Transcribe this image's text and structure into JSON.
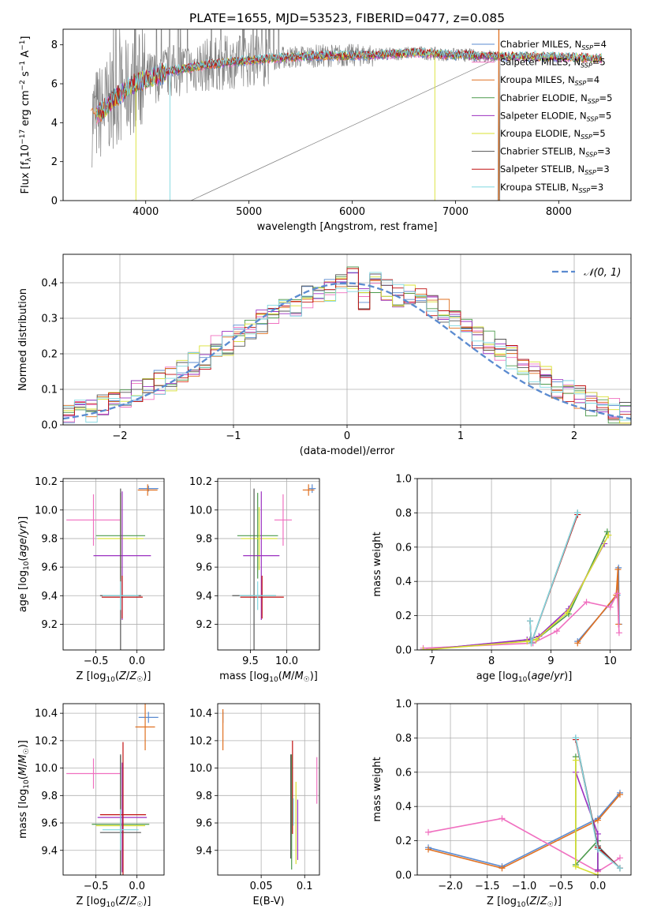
{
  "chart_data": [
    {
      "type": "line",
      "title": "PLATE=1655, MJD=53523, FIBERID=0477, z=0.085",
      "xlabel": "wavelength [Angstrom, rest frame]",
      "ylabel": "Flux [f_λ 10^-17 erg cm^-2 s^-1 A^-1]",
      "xlim": [
        3200,
        8700
      ],
      "ylim": [
        0,
        8.8
      ],
      "xticks": [
        4000,
        5000,
        6000,
        7000,
        8000
      ],
      "yticks": [
        0,
        2,
        4,
        6,
        8
      ],
      "legend_position": "right",
      "series": [
        {
          "name": "Chabrier MILES, N_SSP=4",
          "color": "#5b8bd0"
        },
        {
          "name": "Salpeter MILES, N_SSP=5",
          "color": "#f070c0"
        },
        {
          "name": "Kroupa MILES, N_SSP=4",
          "color": "#e07020"
        },
        {
          "name": "Chabrier ELODIE, N_SSP=5",
          "color": "#4c9a4c"
        },
        {
          "name": "Salpeter ELODIE, N_SSP=5",
          "color": "#9b30c0"
        },
        {
          "name": "Kroupa ELODIE, N_SSP=5",
          "color": "#d8e030"
        },
        {
          "name": "Chabrier STELIB, N_SSP=3",
          "color": "#555555"
        },
        {
          "name": "Salpeter STELIB, N_SSP=3",
          "color": "#c01010"
        },
        {
          "name": "Kroupa STELIB, N_SSP=3",
          "color": "#80d8e0"
        }
      ],
      "continuum": {
        "x": [
          3500,
          3600,
          3700,
          3900,
          4000,
          4200,
          4500,
          4800,
          5000,
          5200,
          5500,
          5800,
          6000,
          6300,
          6600,
          6900,
          7200,
          7500,
          7800,
          8100,
          8400
        ],
        "y": [
          4.3,
          4.7,
          5.3,
          6.0,
          6.2,
          6.6,
          6.9,
          7.1,
          7.2,
          7.3,
          7.4,
          7.45,
          7.45,
          7.5,
          7.6,
          7.5,
          7.45,
          7.4,
          7.4,
          7.35,
          7.3
        ]
      },
      "data_color": "#808080"
    },
    {
      "type": "histogram",
      "xlabel": "(data-model)/error",
      "ylabel": "Normed distribution",
      "xlim": [
        -2.5,
        2.5
      ],
      "ylim": [
        0,
        0.48
      ],
      "xticks": [
        -2,
        -1,
        0,
        1,
        2
      ],
      "yticks": [
        0.0,
        0.1,
        0.2,
        0.3,
        0.4
      ],
      "grid": true,
      "legend": "𝒩(0, 1)",
      "legend_position": "top-right",
      "gaussian_color": "#5b8bd0",
      "bin_edges_start": -2.5,
      "bin_width": 0.1,
      "base_values": [
        0.03,
        0.05,
        0.04,
        0.05,
        0.06,
        0.07,
        0.09,
        0.1,
        0.12,
        0.13,
        0.15,
        0.17,
        0.19,
        0.22,
        0.23,
        0.25,
        0.27,
        0.29,
        0.31,
        0.32,
        0.34,
        0.36,
        0.37,
        0.38,
        0.39,
        0.41,
        0.35,
        0.4,
        0.38,
        0.36,
        0.37,
        0.35,
        0.33,
        0.32,
        0.3,
        0.27,
        0.25,
        0.23,
        0.21,
        0.19,
        0.17,
        0.15,
        0.13,
        0.11,
        0.09,
        0.08,
        0.06,
        0.05,
        0.04,
        0.03
      ]
    },
    {
      "type": "scatter",
      "xlabel": "Z [log10(Z/Z☉)]",
      "ylabel": "age  [log10(age/yr)]",
      "xlim": [
        -0.9,
        0.33
      ],
      "ylim": [
        9.02,
        10.22
      ],
      "xticks": [
        -0.5,
        0.0
      ],
      "yticks": [
        9.2,
        9.4,
        9.6,
        9.8,
        10.0,
        10.2
      ],
      "grid": true,
      "points": [
        {
          "series": "Chabrier MILES",
          "x": 0.14,
          "y": 10.15,
          "xerr": 0.12,
          "yerr": 0.02
        },
        {
          "series": "Kroupa MILES",
          "x": 0.13,
          "y": 10.14,
          "xerr": 0.12,
          "yerr": 0.04
        },
        {
          "series": "Salpeter MILES",
          "x": -0.53,
          "y": 9.93,
          "xerr": 0.33,
          "yerr": 0.18
        },
        {
          "series": "Chabrier ELODIE",
          "x": -0.2,
          "y": 9.82,
          "xerr": 0.3,
          "yerr": 0.3
        },
        {
          "series": "Kroupa ELODIE",
          "x": -0.2,
          "y": 9.8,
          "xerr": 0.28,
          "yerr": 0.3
        },
        {
          "series": "Salpeter ELODIE",
          "x": -0.18,
          "y": 9.68,
          "xerr": 0.35,
          "yerr": 0.45
        },
        {
          "series": "Chabrier STELIB",
          "x": -0.2,
          "y": 9.4,
          "xerr": 0.25,
          "yerr": 0.75
        },
        {
          "series": "Salpeter STELIB",
          "x": -0.18,
          "y": 9.39,
          "xerr": 0.25,
          "yerr": 0.15
        },
        {
          "series": "Kroupa STELIB",
          "x": -0.2,
          "y": 9.4,
          "xerr": 0.22,
          "yerr": 0.1
        }
      ]
    },
    {
      "type": "scatter",
      "xlabel": "mass [log10(M/M☉)]",
      "ylabel": "",
      "xlim": [
        9.05,
        10.45
      ],
      "ylim": [
        9.02,
        10.22
      ],
      "xticks": [
        9.5,
        10.0
      ],
      "yticks": [
        9.2,
        9.4,
        9.6,
        9.8,
        10.0,
        10.2
      ],
      "grid": true,
      "points": [
        {
          "series": "Chabrier MILES",
          "x": 10.35,
          "y": 10.15,
          "xerr": 0.05,
          "yerr": 0.03
        },
        {
          "series": "Kroupa MILES",
          "x": 10.3,
          "y": 10.14,
          "xerr": 0.08,
          "yerr": 0.04
        },
        {
          "series": "Salpeter MILES",
          "x": 9.95,
          "y": 9.93,
          "xerr": 0.12,
          "yerr": 0.18
        },
        {
          "series": "Chabrier ELODIE",
          "x": 9.6,
          "y": 9.82,
          "xerr": 0.28,
          "yerr": 0.3
        },
        {
          "series": "Kroupa ELODIE",
          "x": 9.62,
          "y": 9.8,
          "xerr": 0.25,
          "yerr": 0.22
        },
        {
          "series": "Salpeter ELODIE",
          "x": 9.65,
          "y": 9.68,
          "xerr": 0.25,
          "yerr": 0.45
        },
        {
          "series": "Chabrier STELIB",
          "x": 9.55,
          "y": 9.4,
          "xerr": 0.3,
          "yerr": 0.75
        },
        {
          "series": "Salpeter STELIB",
          "x": 9.66,
          "y": 9.39,
          "xerr": 0.3,
          "yerr": 0.15
        },
        {
          "series": "Kroupa STELIB",
          "x": 9.6,
          "y": 9.4,
          "xerr": 0.25,
          "yerr": 0.1
        }
      ]
    },
    {
      "type": "line",
      "xlabel": "age  [log10(age/yr)]",
      "ylabel": "mass weight",
      "xlim": [
        6.75,
        10.35
      ],
      "ylim": [
        0,
        1.0
      ],
      "xticks": [
        7,
        8,
        9,
        10
      ],
      "yticks": [
        0.0,
        0.2,
        0.4,
        0.6,
        0.8,
        1.0
      ],
      "grid": true,
      "series": [
        {
          "series": "Chabrier MILES",
          "x": [
            9.45,
            10.12,
            10.14,
            10.15
          ],
          "y": [
            0.05,
            0.32,
            0.48,
            0.15
          ]
        },
        {
          "series": "Kroupa MILES",
          "x": [
            9.45,
            10.1,
            10.13,
            10.14
          ],
          "y": [
            0.04,
            0.32,
            0.47,
            0.15
          ]
        },
        {
          "series": "Salpeter MILES",
          "x": [
            6.85,
            8.7,
            9.1,
            9.6,
            10.0,
            10.12,
            10.15
          ],
          "y": [
            0.01,
            0.04,
            0.11,
            0.28,
            0.25,
            0.33,
            0.1
          ]
        },
        {
          "series": "Chabrier ELODIE",
          "x": [
            6.85,
            8.65,
            8.75,
            9.3,
            9.95
          ],
          "y": [
            0.0,
            0.06,
            0.06,
            0.21,
            0.69
          ]
        },
        {
          "series": "Salpeter ELODIE",
          "x": [
            6.85,
            8.6,
            8.8,
            9.3,
            9.9
          ],
          "y": [
            0.0,
            0.06,
            0.08,
            0.24,
            0.62
          ]
        },
        {
          "series": "Kroupa ELODIE",
          "x": [
            6.85,
            8.6,
            8.75,
            9.28,
            9.97
          ],
          "y": [
            0.0,
            0.05,
            0.06,
            0.22,
            0.67
          ]
        },
        {
          "series": "Chabrier STELIB",
          "x": [
            8.65,
            8.67,
            9.45
          ],
          "y": [
            0.17,
            0.04,
            0.8
          ]
        },
        {
          "series": "Salpeter STELIB",
          "x": [
            8.65,
            8.67,
            9.45
          ],
          "y": [
            0.17,
            0.04,
            0.79
          ]
        },
        {
          "series": "Kroupa STELIB",
          "x": [
            8.65,
            8.67,
            9.45
          ],
          "y": [
            0.17,
            0.04,
            0.8
          ]
        }
      ]
    },
    {
      "type": "scatter",
      "xlabel": "Z [log10(Z/Z☉)]",
      "ylabel": "mass [log10(M/M☉)]",
      "xlim": [
        -0.9,
        0.33
      ],
      "ylim": [
        9.22,
        10.47
      ],
      "xticks": [
        -0.5,
        0.0
      ],
      "yticks": [
        9.4,
        9.6,
        9.8,
        10.0,
        10.2,
        10.4
      ],
      "grid": true,
      "points": [
        {
          "series": "Chabrier MILES",
          "x": 0.14,
          "y": 10.37,
          "xerr": 0.12,
          "yerr": 0.04
        },
        {
          "series": "Kroupa MILES",
          "x": 0.1,
          "y": 10.3,
          "xerr": 0.12,
          "yerr": 0.17
        },
        {
          "series": "Salpeter MILES",
          "x": -0.53,
          "y": 9.96,
          "xerr": 0.33,
          "yerr": 0.11
        },
        {
          "series": "Chabrier ELODIE",
          "x": -0.2,
          "y": 9.59,
          "xerr": 0.35,
          "yerr": 0.5
        },
        {
          "series": "Kroupa ELODIE",
          "x": -0.2,
          "y": 9.58,
          "xerr": 0.3,
          "yerr": 0.3
        },
        {
          "series": "Salpeter ELODIE",
          "x": -0.18,
          "y": 9.64,
          "xerr": 0.3,
          "yerr": 0.4
        },
        {
          "series": "Chabrier STELIB",
          "x": -0.2,
          "y": 9.53,
          "xerr": 0.25,
          "yerr": 0.57
        },
        {
          "series": "Salpeter STELIB",
          "x": -0.17,
          "y": 9.66,
          "xerr": 0.28,
          "yerr": 0.53
        },
        {
          "series": "Kroupa STELIB",
          "x": -0.2,
          "y": 9.55,
          "xerr": 0.22,
          "yerr": 0.15
        }
      ]
    },
    {
      "type": "scatter",
      "xlabel": "E(B-V)",
      "ylabel": "",
      "xlim": [
        0.0,
        0.117
      ],
      "ylim": [
        9.22,
        10.47
      ],
      "xticks": [
        0.05,
        0.1
      ],
      "yticks": [
        9.4,
        9.6,
        9.8,
        10.0,
        10.2,
        10.4
      ],
      "grid": true,
      "points": [
        {
          "series": "Chabrier MILES",
          "x": 0.006,
          "y": 10.37,
          "xerr": 0,
          "yerr": 0.04
        },
        {
          "series": "Kroupa MILES",
          "x": 0.006,
          "y": 10.28,
          "xerr": 0,
          "yerr": 0.15
        },
        {
          "series": "Salpeter MILES",
          "x": 0.114,
          "y": 9.91,
          "xerr": 0,
          "yerr": 0.17
        },
        {
          "series": "Chabrier ELODIE",
          "x": 0.085,
          "y": 9.68,
          "xerr": 0,
          "yerr": 0.42
        },
        {
          "series": "Kroupa ELODIE",
          "x": 0.09,
          "y": 9.6,
          "xerr": 0,
          "yerr": 0.3
        },
        {
          "series": "Salpeter ELODIE",
          "x": 0.092,
          "y": 9.55,
          "xerr": 0,
          "yerr": 0.22
        },
        {
          "series": "Chabrier STELIB",
          "x": 0.084,
          "y": 9.72,
          "xerr": 0,
          "yerr": 0.38
        },
        {
          "series": "Salpeter STELIB",
          "x": 0.086,
          "y": 9.86,
          "xerr": 0,
          "yerr": 0.34
        },
        {
          "series": "Kroupa STELIB",
          "x": 0.087,
          "y": 9.68,
          "xerr": 0,
          "yerr": 0.1
        }
      ]
    },
    {
      "type": "line",
      "xlabel": "Z [log10(Z/Z☉)]",
      "ylabel": "mass weight",
      "xlim": [
        -2.45,
        0.45
      ],
      "ylim": [
        0,
        1.0
      ],
      "xticks": [
        -2.0,
        -1.5,
        -1.0,
        -0.5,
        0.0
      ],
      "yticks": [
        0.0,
        0.2,
        0.4,
        0.6,
        0.8,
        1.0
      ],
      "grid": true,
      "series": [
        {
          "series": "Chabrier MILES",
          "x": [
            -2.3,
            -1.3,
            0.0,
            0.3
          ],
          "y": [
            0.16,
            0.05,
            0.33,
            0.48
          ]
        },
        {
          "series": "Kroupa MILES",
          "x": [
            -2.3,
            -1.3,
            0.0,
            0.3
          ],
          "y": [
            0.15,
            0.04,
            0.32,
            0.47
          ]
        },
        {
          "series": "Salpeter MILES",
          "x": [
            -2.3,
            -1.3,
            0.0,
            0.3
          ],
          "y": [
            0.25,
            0.33,
            0.02,
            0.1
          ]
        },
        {
          "series": "Chabrier ELODIE",
          "x": [
            -0.3,
            -0.3,
            0.0,
            0.0
          ],
          "y": [
            0.69,
            0.06,
            0.2,
            0.03
          ]
        },
        {
          "series": "Salpeter ELODIE",
          "x": [
            -0.3,
            0.0,
            0.0
          ],
          "y": [
            0.6,
            0.24,
            0.03
          ]
        },
        {
          "series": "Kroupa ELODIE",
          "x": [
            -0.3,
            -0.3,
            0.0
          ],
          "y": [
            0.67,
            0.05,
            0.0
          ]
        },
        {
          "series": "Chabrier STELIB",
          "x": [
            -0.3,
            0.0,
            0.3
          ],
          "y": [
            0.8,
            0.17,
            0.04
          ]
        },
        {
          "series": "Salpeter STELIB",
          "x": [
            -0.3,
            0.0,
            0.3
          ],
          "y": [
            0.79,
            0.16,
            0.04
          ]
        },
        {
          "series": "Kroupa STELIB",
          "x": [
            -0.3,
            0.0,
            0.3
          ],
          "y": [
            0.8,
            0.15,
            0.04
          ]
        }
      ]
    }
  ]
}
